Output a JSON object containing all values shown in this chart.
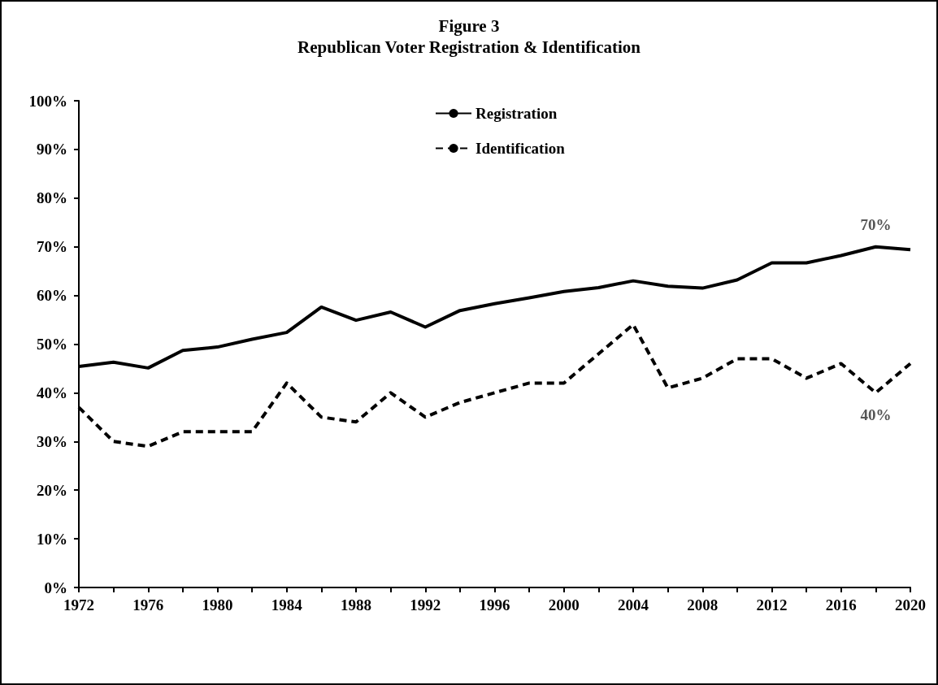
{
  "chart_data": {
    "type": "line",
    "title": "Figure 3\nRepublican Voter Registration & Identification",
    "x": [
      1972,
      1974,
      1976,
      1978,
      1980,
      1982,
      1984,
      1986,
      1988,
      1990,
      1992,
      1994,
      1996,
      1998,
      2000,
      2002,
      2004,
      2006,
      2008,
      2010,
      2012,
      2014,
      2016,
      2018,
      2020
    ],
    "series": [
      {
        "name": "Registration",
        "color": "#000000",
        "line_style": "solid",
        "values": [
          45.4,
          46.3,
          45.1,
          48.7,
          49.4,
          51.0,
          52.4,
          57.6,
          54.9,
          56.6,
          53.5,
          56.9,
          58.3,
          59.5,
          60.8,
          61.6,
          63.0,
          61.9,
          61.5,
          63.2,
          66.7,
          66.7,
          68.2,
          70,
          69.4
        ],
        "value_labels": [
          null,
          null,
          null,
          null,
          null,
          null,
          null,
          null,
          null,
          null,
          null,
          null,
          null,
          null,
          null,
          null,
          null,
          null,
          null,
          null,
          null,
          null,
          null,
          "70%",
          null
        ]
      },
      {
        "name": "Identification",
        "color": "#000000",
        "line_style": "dashed",
        "values": [
          37,
          30,
          29,
          32,
          32,
          32,
          42,
          35,
          34,
          40,
          35,
          38,
          40,
          42,
          42,
          48,
          54,
          41,
          43,
          47,
          47,
          43,
          46,
          40,
          46
        ],
        "value_labels": [
          null,
          null,
          null,
          null,
          null,
          null,
          null,
          null,
          null,
          null,
          null,
          null,
          null,
          null,
          null,
          null,
          null,
          null,
          null,
          null,
          null,
          null,
          null,
          "40%",
          null
        ]
      }
    ],
    "xlim": [
      1972,
      2020
    ],
    "xticks": [
      1972,
      {
        "value": 1974,
        "label": null
      },
      1976,
      {
        "value": 1978,
        "label": null
      },
      1980,
      {
        "value": 1982,
        "label": null
      },
      1984,
      {
        "value": 1986,
        "label": null
      },
      1988,
      {
        "value": 1990,
        "label": null
      },
      1992,
      {
        "value": 1994,
        "label": null
      },
      1996,
      {
        "value": 1998,
        "label": null
      },
      2000,
      {
        "value": 2002,
        "label": null
      },
      2004,
      {
        "value": 2006,
        "label": null
      },
      2008,
      {
        "value": 2010,
        "label": null
      },
      2012,
      {
        "value": 2014,
        "label": null
      },
      2016,
      {
        "value": 2018,
        "label": null
      },
      2020
    ],
    "ylim": [
      0,
      100
    ],
    "yticks": [
      {
        "value": 0,
        "label": "0%"
      },
      {
        "value": 10,
        "label": "10%"
      },
      {
        "value": 20,
        "label": "20%"
      },
      {
        "value": 30,
        "label": "30%"
      },
      {
        "value": 40,
        "label": "40%"
      },
      {
        "value": 50,
        "label": "50%"
      },
      {
        "value": 60,
        "label": "60%"
      },
      {
        "value": 70,
        "label": "70%"
      },
      {
        "value": 80,
        "label": "80%"
      },
      {
        "value": 90,
        "label": "90%"
      },
      {
        "value": 100,
        "label": "100%"
      }
    ],
    "grid": false,
    "legend": "top",
    "marker": "none"
  }
}
